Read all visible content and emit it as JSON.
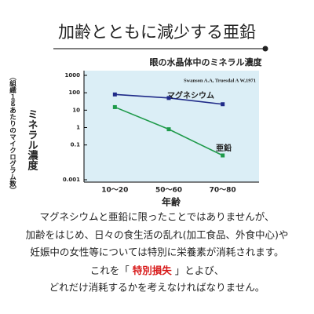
{
  "header": {
    "title": "加齢とともに減少する亜鉛"
  },
  "chart_data": {
    "type": "line",
    "title": "眼の水晶体中のミネラル濃度",
    "source": "Swanson A.A, Truesdal A W,1971",
    "categories": [
      "10〜20",
      "50〜60",
      "70〜80"
    ],
    "series": [
      {
        "name": "マグネシウム",
        "color": "#1f2a88",
        "values": [
          80,
          50,
          22
        ]
      },
      {
        "name": "亜鉛",
        "color": "#1e9a4a",
        "values": [
          15,
          0.8,
          0.025
        ]
      }
    ],
    "ylim": [
      0.001,
      1000
    ],
    "yticks": [
      1000,
      100,
      10,
      1,
      0.1,
      0.001
    ],
    "log_scale": true,
    "xlabel": "年齢",
    "ylabel": "ミネラル濃度",
    "ylabel_note": "（組織１ｇあたりのマイクログラム数）"
  },
  "body": {
    "lines": [
      "マグネシウムと亜鉛に限ったことではありませんが、",
      "加齢をはじめ、日々の食生活の乱れ(加工食品、外食中心)や",
      "妊娠中の女性等については特別に栄養素が消耗されます。"
    ],
    "highlight_line": {
      "before": "これを「",
      "emphasis": "特別損失",
      "after": "」とよび、"
    },
    "last_line": "どれだけ消耗するかを考えなければなりません。"
  }
}
